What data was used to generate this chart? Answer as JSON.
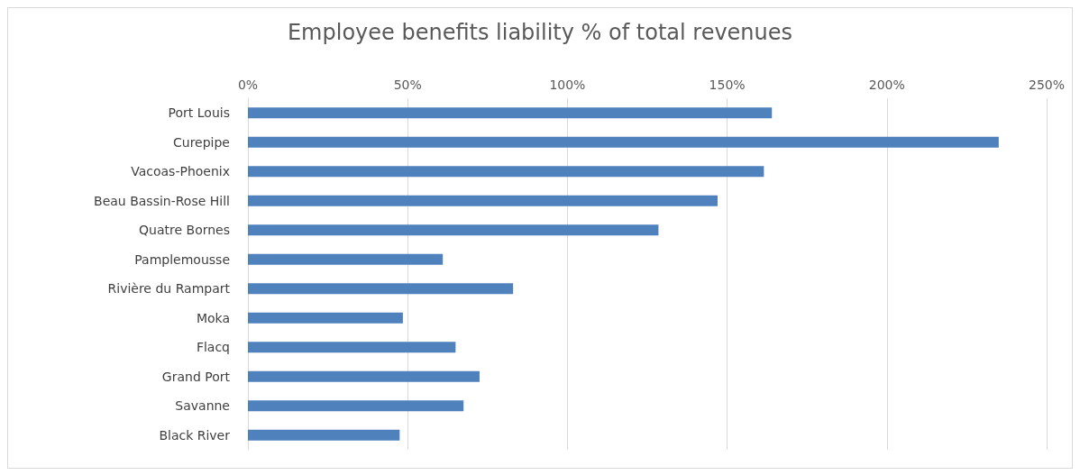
{
  "chart_data": {
    "type": "bar",
    "orientation": "horizontal",
    "title": "Employee benefits liability % of total revenues",
    "categories": [
      "Port Louis",
      "Curepipe",
      "Vacoas-Phoenix",
      "Beau Bassin-Rose Hill",
      "Quatre Bornes",
      "Pamplemousse",
      "Rivière du Rampart",
      "Moka",
      "Flacq",
      "Grand Port",
      "Savanne",
      "Black River"
    ],
    "values": [
      164,
      235,
      161.5,
      147,
      128.5,
      61,
      83,
      48.5,
      65,
      72.5,
      67.5,
      47.5
    ],
    "color": "#4f81bd",
    "xlim": [
      0,
      250
    ],
    "xticks": [
      {
        "value": 0,
        "label": "0%"
      },
      {
        "value": 50,
        "label": "50%"
      },
      {
        "value": 100,
        "label": "100%"
      },
      {
        "value": 150,
        "label": "150%"
      },
      {
        "value": 200,
        "label": "200%"
      },
      {
        "value": 250,
        "label": "250%"
      }
    ],
    "grid": "x"
  }
}
